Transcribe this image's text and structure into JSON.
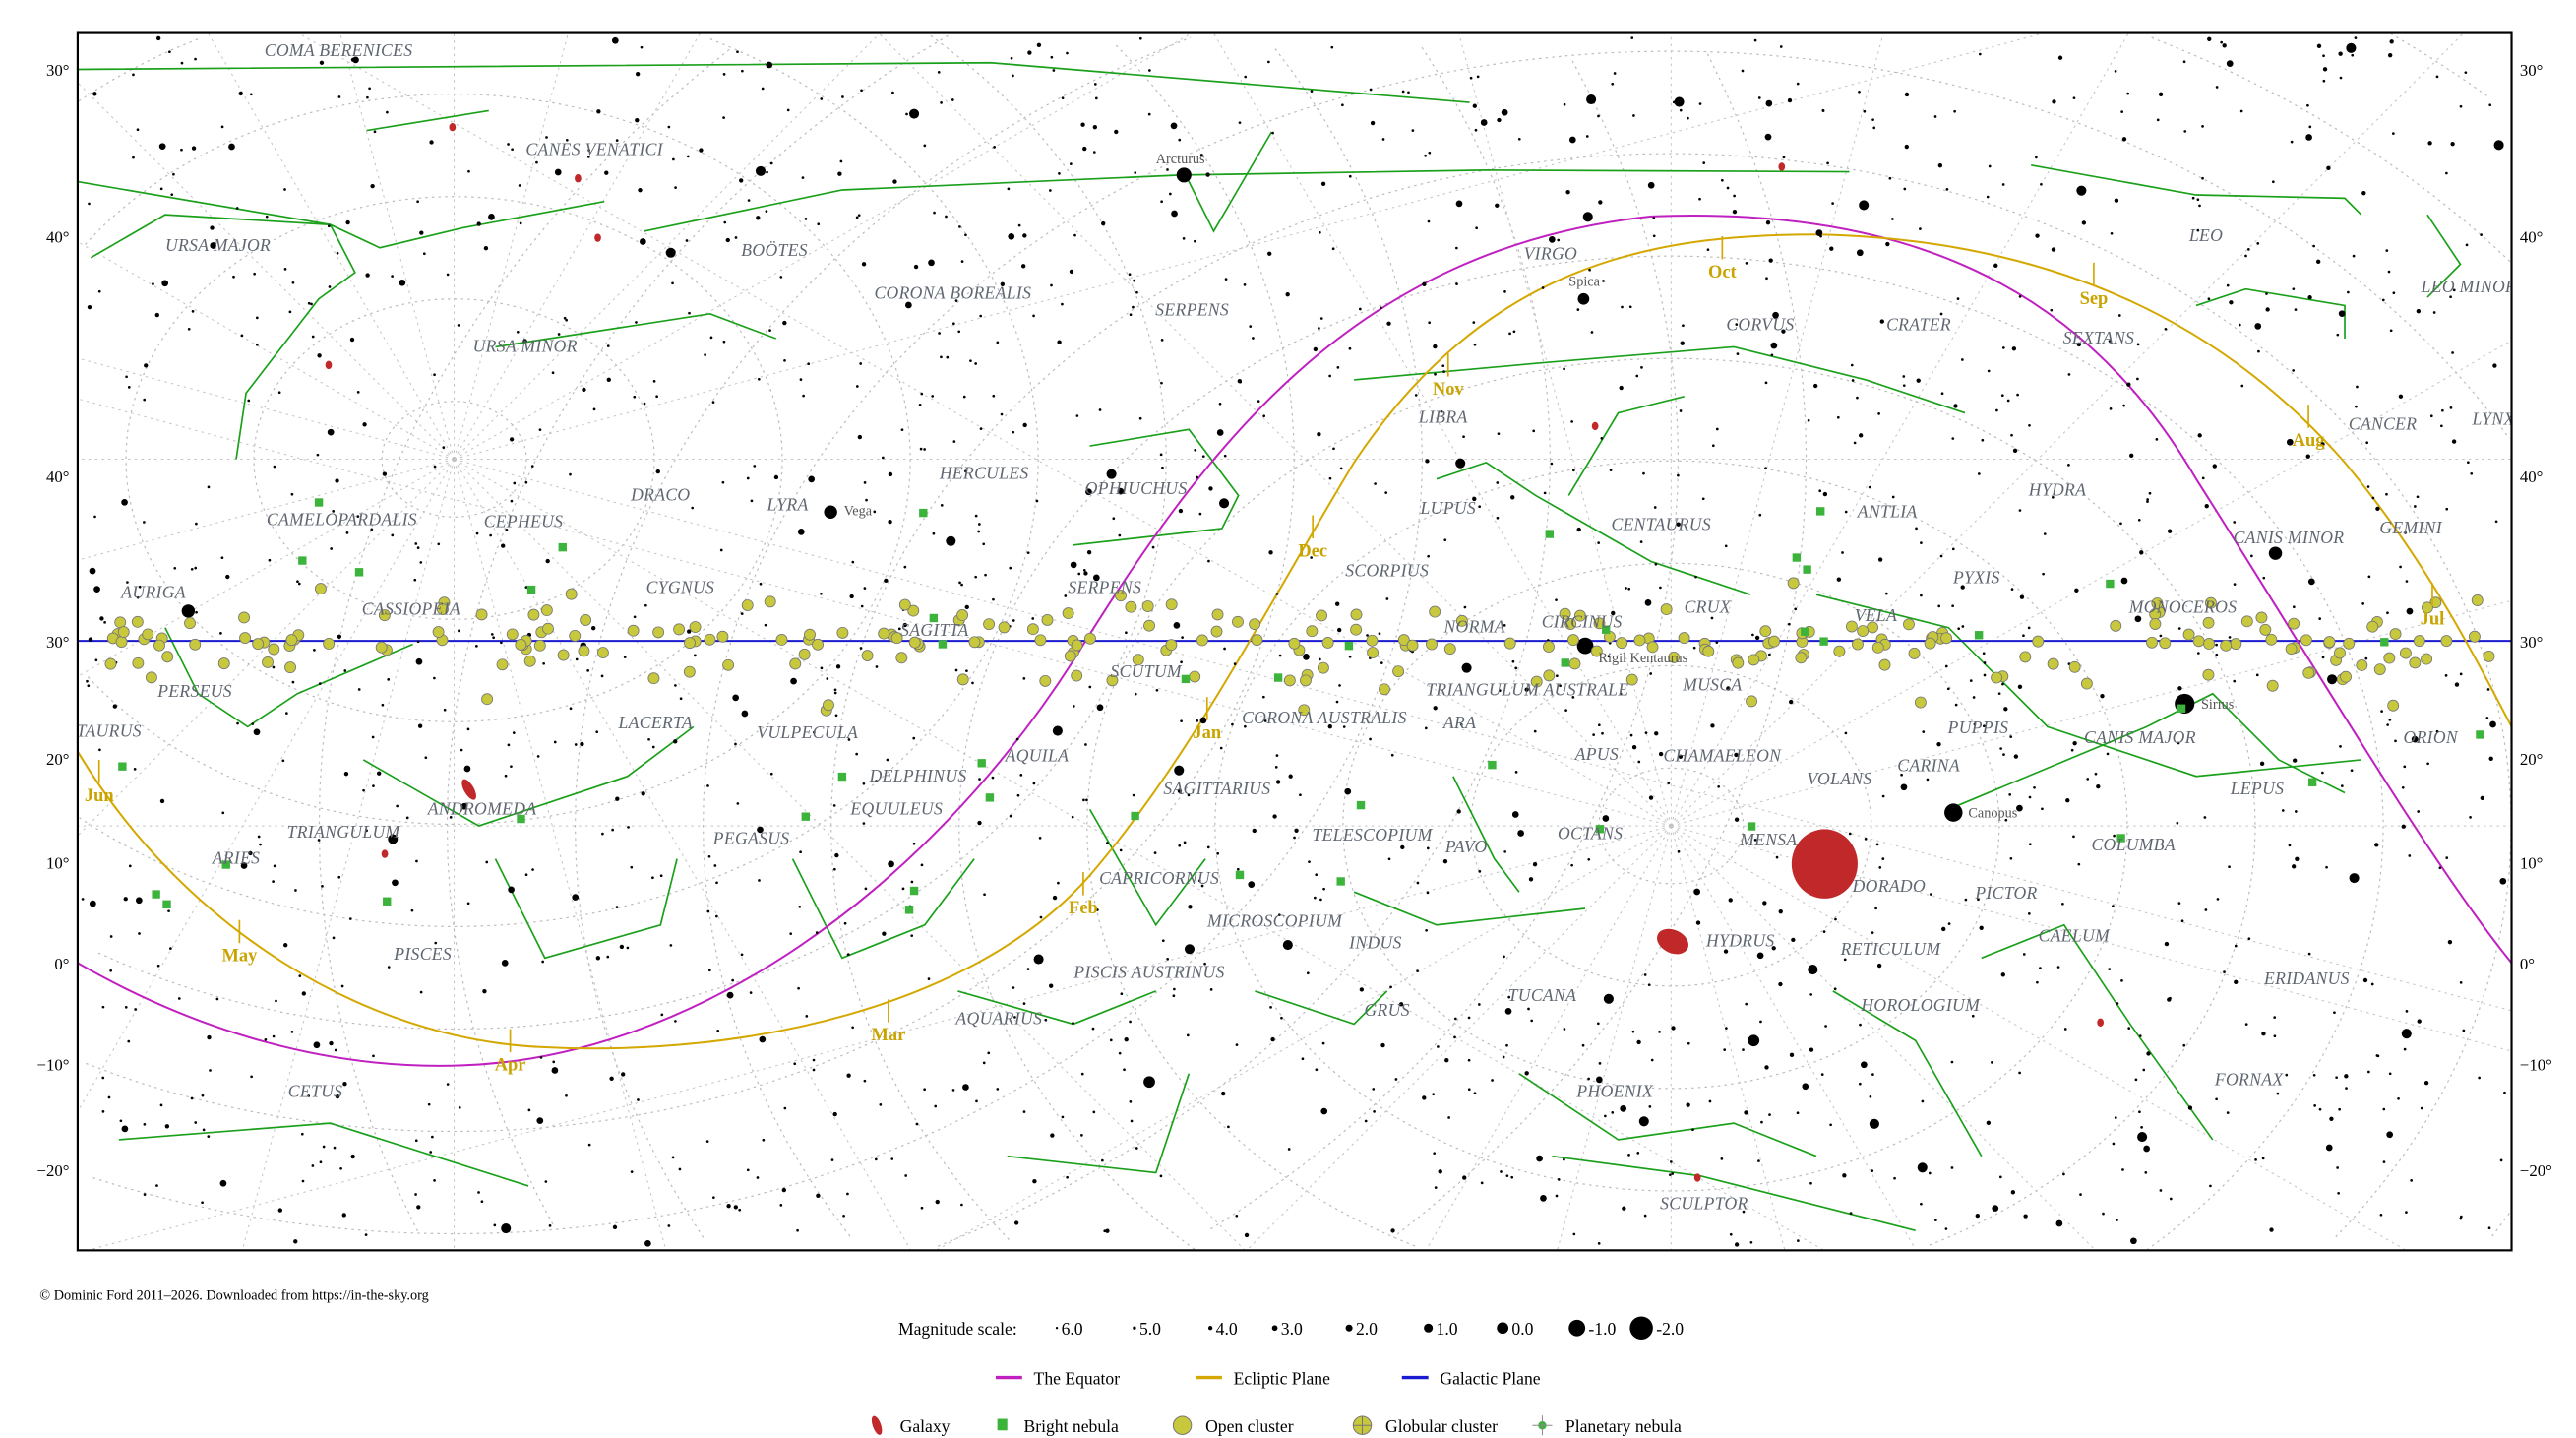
{
  "map": {
    "axis_left": [
      "30°",
      "40°",
      "40°",
      "30°",
      "20°",
      "10°",
      "0°",
      "−10°",
      "−20°"
    ],
    "axis_right": [
      "30°",
      "40°",
      "40°",
      "30°",
      "20°",
      "10°",
      "0°",
      "−10°",
      "−20°"
    ],
    "constellations": [
      "COMA BERENICES",
      "CANES VENATICI",
      "URSA MAJOR",
      "BOÖTES",
      "CORONA BOREALIS",
      "URSA MINOR",
      "VIRGO",
      "CORVUS",
      "CRATER",
      "SEXTANS",
      "LEO",
      "LEO MINOR",
      "SERPENS",
      "LIBRA",
      "CANCER",
      "LYNX",
      "DRACO",
      "LYRA",
      "HERCULES",
      "OPHIUCHUS",
      "HYDRA",
      "CAMELOPARDALIS",
      "CEPHEUS",
      "LUPUS",
      "CENTAURUS",
      "ANTLIA",
      "CANIS MINOR",
      "GEMINI",
      "AURIGA",
      "SCORPIUS",
      "PYXIS",
      "CYGNUS",
      "SERPENS",
      "CASSIOPEIA",
      "MONOCEROS",
      "VELA",
      "CRUX",
      "NORMA",
      "CIRCINUS",
      "SAGITTA",
      "PERSEUS",
      "SCUTUM",
      "MUSCA",
      "CORONA AUSTRALIS",
      "TRIANGULUM AUSTRALE",
      "ARA",
      "LACERTA",
      "VULPECULA",
      "PUPPIS",
      "CANIS MAJOR",
      "TAURUS",
      "APUS",
      "CHAMAELEON",
      "AQUILA",
      "DELPHINUS",
      "VOLANS",
      "CARINA",
      "ORION",
      "SAGITTARIUS",
      "LEPUS",
      "EQUULEUS",
      "ANDROMEDA",
      "TRIANGULUM",
      "PEGASUS",
      "TELESCOPIUM",
      "PAVO",
      "OCTANS",
      "MENSA",
      "ARIES",
      "COLUMBA",
      "DORADO",
      "PICTOR",
      "CAPRICORNUS",
      "MICROSCOPIUM",
      "INDUS",
      "HYDRUS",
      "RETICULUM",
      "CAELUM",
      "PISCES",
      "PISCIS AUSTRINUS",
      "ERIDANUS",
      "GRUS",
      "TUCANA",
      "HOROLOGIUM",
      "AQUARIUS",
      "CETUS",
      "PHOENIX",
      "FORNAX",
      "SCULPTOR"
    ],
    "named_stars": [
      "Arcturus",
      "Spica",
      "Vega",
      "Rigil Kentaurus",
      "Sirius",
      "Canopus"
    ],
    "months": [
      "Jun",
      "May",
      "Apr",
      "Mar",
      "Feb",
      "Jan",
      "Dec",
      "Nov",
      "Oct",
      "Sep",
      "Aug",
      "Jul"
    ],
    "colors": {
      "equator": "#c020c0",
      "ecliptic": "#d4a800",
      "galactic": "#1a1ad0",
      "constellation_lines": "#1aa01a",
      "galaxy": "#c0282a",
      "nebula": "#3cb43c",
      "cluster": "#c8c83c"
    }
  },
  "footer": {
    "credit": "© Dominic Ford 2011–2026. Downloaded from https://in-the-sky.org"
  },
  "legend": {
    "magnitude_title": "Magnitude scale:",
    "magnitudes": [
      "6.0",
      "5.0",
      "4.0",
      "3.0",
      "2.0",
      "1.0",
      "0.0",
      "-1.0",
      "-2.0"
    ],
    "lines": [
      "The Equator",
      "Ecliptic Plane",
      "Galactic Plane"
    ],
    "objects": [
      "Galaxy",
      "Bright nebula",
      "Open cluster",
      "Globular cluster",
      "Planetary nebula"
    ]
  }
}
